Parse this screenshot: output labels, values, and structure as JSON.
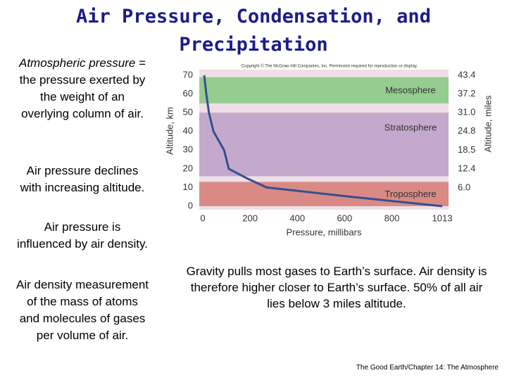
{
  "header": {
    "title": "Air Pressure, Condensation, and Precipitation"
  },
  "definition": {
    "term": "Atmospheric pressure",
    "rest": " = the pressure exerted by the weight of an overlying column of air."
  },
  "points": [
    "Air pressure declines with increasing altitude.",
    "Air pressure is influenced by air density.",
    "Air density measurement of the mass of atoms and molecules of gases per volume of air."
  ],
  "caption": "Gravity pulls most gases to Earth’s surface.  Air density is therefore higher closer to Earth’s surface.  50% of all air lies below 3 miles altitude.",
  "footer": "The Good Earth/Chapter 14: The Atmosphere",
  "chart_data": {
    "type": "line",
    "copyright": "Copyright © The McGraw-Hill Companies, Inc. Permission required for reproduction or display.",
    "xlabel": "Pressure, millibars",
    "ylabel": "Altitude, km",
    "y2label": "Altitude, miles",
    "x": [
      1013,
      630,
      270,
      185,
      110,
      90,
      45,
      26,
      15,
      6
    ],
    "series": [
      {
        "color": "#34508f",
        "values": [
          0,
          5,
          10,
          15,
          20,
          30,
          40,
          50,
          60,
          70
        ]
      }
    ],
    "xlim": [
      0,
      1013
    ],
    "xticks": [
      0,
      200,
      400,
      600,
      800,
      1013
    ],
    "ylim": [
      0,
      70
    ],
    "yticks": [
      0,
      10,
      20,
      30,
      40,
      50,
      60,
      70
    ],
    "y2lim": [
      0,
      43.4
    ],
    "y2ticks": [
      {
        "value": 6.0,
        "label": "6.0"
      },
      12.4,
      18.5,
      24.8,
      {
        "value": 31.0,
        "label": "31.0"
      },
      37.2,
      43.4
    ],
    "layers": [
      {
        "name": "Troposphere",
        "from": 0,
        "to": 13,
        "color": "#d98a85"
      },
      {
        "name": "Stratosphere",
        "from": 16,
        "to": 50,
        "color": "#c4a9cc"
      },
      {
        "name": "Mesosphere",
        "from": 55,
        "to": 69,
        "color": "#96cc8f"
      }
    ]
  }
}
